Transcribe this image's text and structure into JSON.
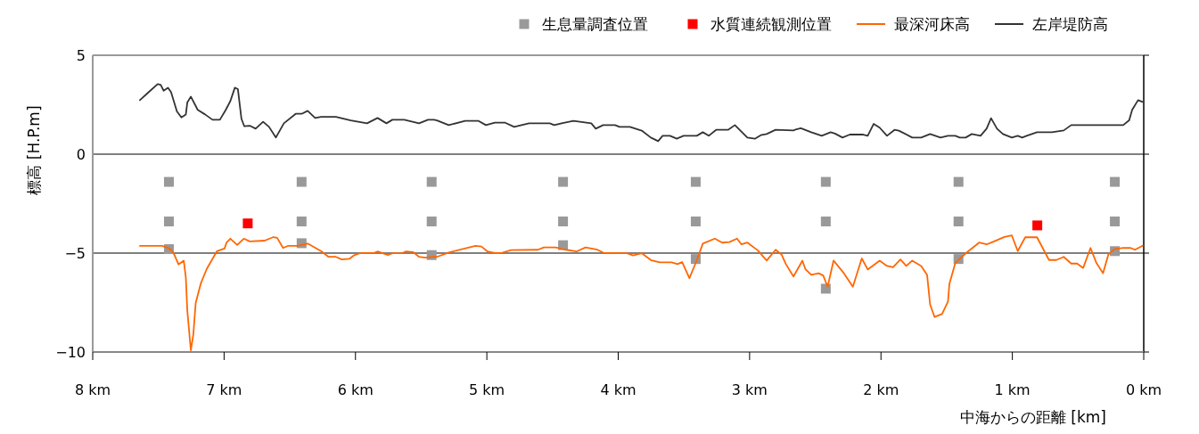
{
  "chart_data": {
    "type": "line",
    "xlabel": "中海からの距離 [km]",
    "ylabel": "標高 [H.P.m]",
    "xlim": [
      8,
      0
    ],
    "xticks": [
      {
        "value": 8,
        "label": "8 km"
      },
      {
        "value": 7,
        "label": "7 km"
      },
      {
        "value": 6,
        "label": "6 km"
      },
      {
        "value": 5,
        "label": "5 km"
      },
      {
        "value": 4,
        "label": "4 km"
      },
      {
        "value": 3,
        "label": "3 km"
      },
      {
        "value": 2,
        "label": "2 km"
      },
      {
        "value": 1,
        "label": "1 km"
      },
      {
        "value": 0,
        "label": "0 km"
      }
    ],
    "ylim": [
      -10,
      5
    ],
    "yticks": [
      -10,
      -5,
      0,
      5
    ],
    "grid": "y",
    "legend": "top right",
    "series": [
      {
        "name": "生息量調査位置",
        "type": "scatter",
        "marker": "square",
        "color": "#999999",
        "x": [
          7.42,
          7.42,
          7.42,
          6.41,
          6.41,
          6.41,
          5.42,
          5.42,
          5.42,
          4.42,
          4.42,
          4.42,
          3.41,
          3.41,
          3.41,
          2.42,
          2.42,
          2.42,
          1.41,
          1.41,
          1.41,
          0.22,
          0.22,
          0.22
        ],
        "values": [
          -1.4,
          -3.4,
          -4.8,
          -1.4,
          -3.4,
          -4.5,
          -1.4,
          -3.4,
          -5.1,
          -1.4,
          -3.4,
          -4.6,
          -1.4,
          -3.4,
          -5.3,
          -1.4,
          -3.4,
          -6.8,
          -1.4,
          -3.4,
          -5.3,
          -1.4,
          -3.4,
          -4.9
        ]
      },
      {
        "name": "水質連続観測位置",
        "type": "scatter",
        "marker": "square",
        "color": "#ff0000",
        "x": [
          6.82,
          0.81
        ],
        "values": [
          -3.5,
          -3.6
        ]
      },
      {
        "name": "最深河床高",
        "type": "line",
        "marker": "none",
        "color": "#ff6600",
        "x": [
          7.641,
          7.472,
          7.415,
          7.381,
          7.347,
          7.307,
          7.291,
          7.28,
          7.253,
          7.234,
          7.216,
          7.178,
          7.132,
          7.054,
          6.997,
          6.981,
          6.952,
          6.9,
          6.85,
          6.805,
          6.691,
          6.624,
          6.596,
          6.551,
          6.511,
          6.443,
          6.364,
          6.262,
          6.205,
          6.149,
          6.104,
          6.047,
          6.013,
          5.968,
          5.855,
          5.832,
          5.753,
          5.719,
          5.651,
          5.617,
          5.561,
          5.516,
          5.47,
          5.402,
          5.38,
          5.29,
          5.086,
          5.041,
          4.995,
          4.939,
          4.894,
          4.815,
          4.611,
          4.566,
          4.476,
          4.408,
          4.317,
          4.249,
          4.159,
          4.113,
          3.933,
          3.887,
          3.82,
          3.752,
          3.684,
          3.594,
          3.548,
          3.514,
          3.458,
          3.401,
          3.356,
          3.265,
          3.209,
          3.153,
          3.096,
          3.062,
          3.017,
          2.938,
          2.87,
          2.802,
          2.756,
          2.723,
          2.666,
          2.598,
          2.576,
          2.531,
          2.474,
          2.44,
          2.406,
          2.361,
          2.282,
          2.214,
          2.146,
          2.101,
          2.01,
          1.954,
          1.908,
          1.852,
          1.807,
          1.762,
          1.694,
          1.649,
          1.626,
          1.592,
          1.535,
          1.49,
          1.479,
          1.434,
          1.355,
          1.253,
          1.196,
          1.151,
          1.06,
          1.004,
          0.959,
          0.902,
          0.812,
          0.721,
          0.665,
          0.609,
          0.552,
          0.507,
          0.461,
          0.405,
          0.36,
          0.31,
          0.269,
          0.224,
          0.156,
          0.1,
          0.066,
          0.009
        ],
        "values": [
          -4.63,
          -4.63,
          -4.77,
          -5.05,
          -5.57,
          -5.38,
          -6.25,
          -7.9,
          -9.92,
          -9.1,
          -7.52,
          -6.55,
          -5.8,
          -4.9,
          -4.77,
          -4.47,
          -4.27,
          -4.59,
          -4.27,
          -4.41,
          -4.37,
          -4.19,
          -4.23,
          -4.74,
          -4.63,
          -4.63,
          -4.52,
          -4.9,
          -5.19,
          -5.19,
          -5.32,
          -5.29,
          -5.12,
          -5.01,
          -4.98,
          -4.92,
          -5.1,
          -5.01,
          -5.01,
          -4.92,
          -4.95,
          -5.19,
          -5.23,
          -5.19,
          -5.19,
          -4.97,
          -4.63,
          -4.67,
          -4.92,
          -5.0,
          -5.0,
          -4.85,
          -4.83,
          -4.71,
          -4.71,
          -4.82,
          -4.92,
          -4.71,
          -4.83,
          -4.98,
          -5.01,
          -5.12,
          -5.01,
          -5.35,
          -5.47,
          -5.47,
          -5.56,
          -5.45,
          -6.27,
          -5.35,
          -4.52,
          -4.27,
          -4.47,
          -4.44,
          -4.27,
          -4.56,
          -4.47,
          -4.86,
          -5.38,
          -4.83,
          -5.08,
          -5.57,
          -6.18,
          -5.38,
          -5.8,
          -6.1,
          -6.02,
          -6.13,
          -6.7,
          -5.38,
          -6.02,
          -6.7,
          -5.27,
          -5.83,
          -5.38,
          -5.65,
          -5.72,
          -5.32,
          -5.65,
          -5.38,
          -5.65,
          -6.1,
          -7.6,
          -8.23,
          -8.08,
          -7.45,
          -6.55,
          -5.5,
          -5.01,
          -4.47,
          -4.56,
          -4.44,
          -4.18,
          -4.11,
          -4.9,
          -4.2,
          -4.2,
          -5.35,
          -5.35,
          -5.19,
          -5.53,
          -5.53,
          -5.75,
          -4.74,
          -5.5,
          -6.02,
          -5.07,
          -4.8,
          -4.74,
          -4.74,
          -4.83,
          -4.63
        ]
      },
      {
        "name": "左岸堤防高",
        "type": "line",
        "marker": "none",
        "color": "#333333",
        "x": [
          7.641,
          7.573,
          7.506,
          7.483,
          7.46,
          7.427,
          7.404,
          7.359,
          7.325,
          7.291,
          7.28,
          7.253,
          7.201,
          7.145,
          7.088,
          7.032,
          6.987,
          6.952,
          6.918,
          6.895,
          6.868,
          6.846,
          6.805,
          6.76,
          6.703,
          6.658,
          6.606,
          6.545,
          6.455,
          6.409,
          6.364,
          6.307,
          6.262,
          6.149,
          6.036,
          5.912,
          5.832,
          5.764,
          5.719,
          5.629,
          5.516,
          5.448,
          5.402,
          5.38,
          5.29,
          5.165,
          5.063,
          5.007,
          4.939,
          4.86,
          4.792,
          4.679,
          4.521,
          4.487,
          4.431,
          4.341,
          4.205,
          4.171,
          4.115,
          4.024,
          3.99,
          3.911,
          3.821,
          3.752,
          3.696,
          3.662,
          3.606,
          3.554,
          3.504,
          3.402,
          3.356,
          3.311,
          3.255,
          3.164,
          3.112,
          3.017,
          2.96,
          2.915,
          2.87,
          2.802,
          2.666,
          2.644,
          2.61,
          2.531,
          2.451,
          2.383,
          2.35,
          2.293,
          2.237,
          2.135,
          2.101,
          2.056,
          2.01,
          1.954,
          1.897,
          1.864,
          1.762,
          1.694,
          1.626,
          1.547,
          1.49,
          1.434,
          1.4,
          1.355,
          1.309,
          1.242,
          1.196,
          1.162,
          1.117,
          1.072,
          1.004,
          0.959,
          0.925,
          0.891,
          0.812,
          0.699,
          0.609,
          0.552,
          0.473,
          0.156,
          0.111,
          0.088,
          0.043,
          0.009
        ],
        "values": [
          2.73,
          3.14,
          3.54,
          3.51,
          3.21,
          3.36,
          3.14,
          2.16,
          1.86,
          2.01,
          2.61,
          2.91,
          2.24,
          2.01,
          1.74,
          1.74,
          2.24,
          2.69,
          3.36,
          3.29,
          1.79,
          1.41,
          1.44,
          1.29,
          1.64,
          1.38,
          0.84,
          1.56,
          2.04,
          2.04,
          2.19,
          1.83,
          1.89,
          1.89,
          1.71,
          1.56,
          1.83,
          1.56,
          1.74,
          1.74,
          1.56,
          1.74,
          1.74,
          1.71,
          1.47,
          1.68,
          1.68,
          1.47,
          1.59,
          1.59,
          1.38,
          1.56,
          1.56,
          1.47,
          1.56,
          1.68,
          1.56,
          1.29,
          1.47,
          1.47,
          1.38,
          1.38,
          1.19,
          0.84,
          0.66,
          0.93,
          0.93,
          0.78,
          0.93,
          0.93,
          1.11,
          0.93,
          1.23,
          1.23,
          1.47,
          0.84,
          0.78,
          0.96,
          1.02,
          1.23,
          1.2,
          1.26,
          1.31,
          1.11,
          0.93,
          1.11,
          1.04,
          0.84,
          0.99,
          0.99,
          0.93,
          1.53,
          1.34,
          0.93,
          1.23,
          1.19,
          0.84,
          0.84,
          1.02,
          0.84,
          0.93,
          0.93,
          0.84,
          0.84,
          1.02,
          0.93,
          1.29,
          1.82,
          1.29,
          1.02,
          0.84,
          0.93,
          0.84,
          0.93,
          1.11,
          1.11,
          1.2,
          1.47,
          1.47,
          1.47,
          1.71,
          2.24,
          2.73,
          2.64
        ]
      }
    ]
  }
}
